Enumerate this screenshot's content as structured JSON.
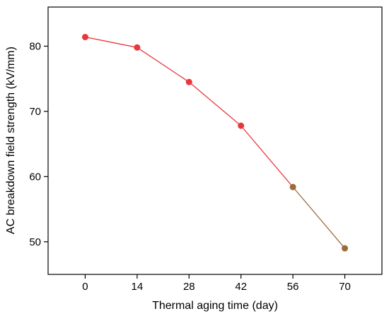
{
  "chart_data": {
    "type": "line",
    "xlabel": "Thermal aging time (day)",
    "ylabel": "AC breakdown field strength (kV/mm)",
    "x": [
      0,
      14,
      28,
      42,
      56,
      70
    ],
    "x_tick_labels": [
      "0",
      "14",
      "28",
      "42",
      "56",
      "70"
    ],
    "y_tick_labels": [
      "50",
      "60",
      "70",
      "80"
    ],
    "y_ticks": [
      50,
      60,
      70,
      80
    ],
    "xlim": [
      -10,
      80
    ],
    "ylim": [
      45,
      86
    ],
    "series": [
      {
        "values": [
          81.4,
          79.8,
          74.5,
          67.8,
          58.4,
          49.0
        ],
        "point_colors": [
          "#e8383d",
          "#e8383d",
          "#e8383d",
          "#e8383d",
          "#9c6b3c",
          "#9c6b3c"
        ],
        "segment_colors": [
          "#e8383d",
          "#e8383d",
          "#e8383d",
          "#e8383d",
          "#9c6b3c"
        ]
      }
    ],
    "grid": false,
    "legend": "none"
  }
}
